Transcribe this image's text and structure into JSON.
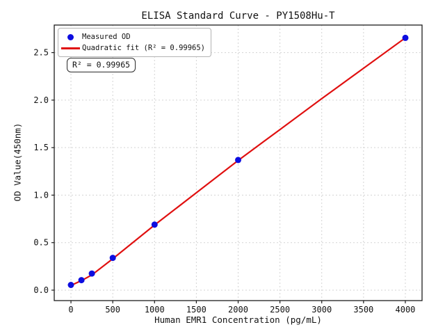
{
  "figure": {
    "background": "#ffffff"
  },
  "chart_data": {
    "type": "scatter",
    "title": "ELISA Standard Curve - PY1508Hu-T",
    "xlabel": "Human EMR1 Concentration (pg/mL)",
    "ylabel": "OD Value(450nm)",
    "xlim": [
      -200,
      4200
    ],
    "ylim": [
      -0.11,
      2.79
    ],
    "x_ticks": [
      0,
      500,
      1000,
      1500,
      2000,
      2500,
      3000,
      3500,
      4000
    ],
    "y_ticks": [
      0.0,
      0.5,
      1.0,
      1.5,
      2.0,
      2.5
    ],
    "grid": true,
    "grid_style": "dashed",
    "legend_position": "upper left",
    "annotation": "R² = 0.99965",
    "series": [
      {
        "name": "Measured OD",
        "type": "scatter",
        "color": "#0d0de0",
        "points": [
          [
            0,
            0.055
          ],
          [
            125,
            0.105
          ],
          [
            250,
            0.175
          ],
          [
            500,
            0.34
          ],
          [
            1000,
            0.69
          ],
          [
            2000,
            1.37
          ],
          [
            4000,
            2.655
          ]
        ]
      },
      {
        "name": "Quadratic fit (R² = 0.99965)",
        "type": "line",
        "color": "#e01010",
        "points": [
          [
            0,
            0.05
          ],
          [
            125,
            0.1
          ],
          [
            250,
            0.16
          ],
          [
            500,
            0.33
          ],
          [
            1000,
            0.685
          ],
          [
            1500,
            1.025
          ],
          [
            2000,
            1.365
          ],
          [
            2500,
            1.69
          ],
          [
            3000,
            2.015
          ],
          [
            3500,
            2.335
          ],
          [
            4000,
            2.655
          ]
        ]
      }
    ],
    "colors": {
      "grid": "#d3d3d3",
      "spine": "#1c1c1c",
      "text": "#111111"
    }
  }
}
